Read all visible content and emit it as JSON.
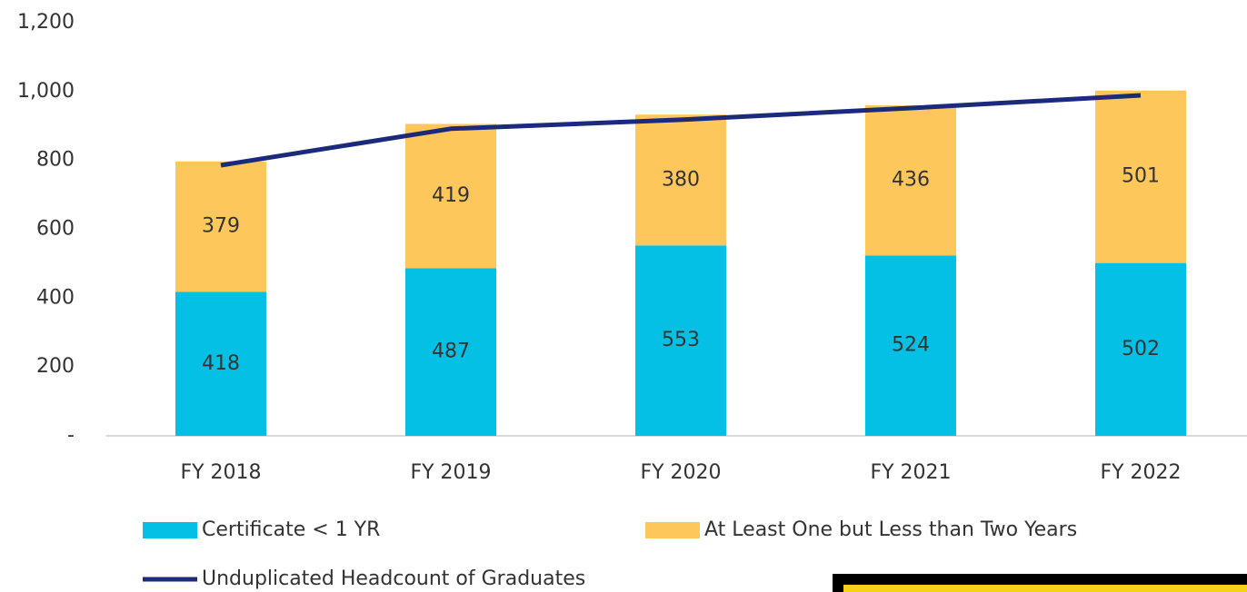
{
  "chart_data": {
    "type": "bar",
    "categories": [
      "FY 2018",
      "FY 2019",
      "FY 2020",
      "FY 2021",
      "FY 2022"
    ],
    "series": [
      {
        "name": "Certificate <  1 YR",
        "color": "#05c0e5",
        "values": [
          418,
          487,
          553,
          524,
          502
        ]
      },
      {
        "name": "At Least One but Less than Two Years",
        "color": "#fdc75c",
        "values": [
          379,
          419,
          380,
          436,
          501
        ]
      },
      {
        "name": "Unduplicated Headcount of Graduates",
        "color": "#1b2a7a",
        "type": "line",
        "values": [
          786,
          892,
          918,
          952,
          989
        ]
      }
    ],
    "ylim": [
      0,
      1200
    ],
    "yticks": [
      {
        "value": 0,
        "label": "-"
      },
      200,
      400,
      600,
      800,
      {
        "value": 1000,
        "label": "1,000"
      },
      {
        "value": 1200,
        "label": "1,200"
      }
    ]
  }
}
